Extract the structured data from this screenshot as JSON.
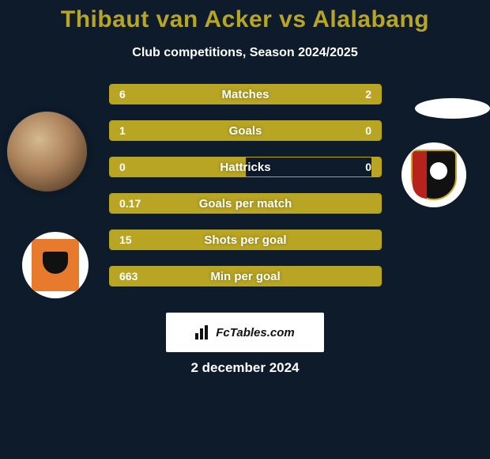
{
  "title": "Thibaut van Acker vs Alalabang",
  "subtitle": "Club competitions, Season 2024/2025",
  "brand": "FcTables.com",
  "date": "2 december 2024",
  "colors": {
    "background": "#0d1b2a",
    "accent": "#b8a524",
    "title": "#b8a524",
    "text": "#ffffff"
  },
  "rows": [
    {
      "label": "Matches",
      "left": "6",
      "right": "2",
      "left_pct": 75,
      "right_pct": 25
    },
    {
      "label": "Goals",
      "left": "1",
      "right": "0",
      "left_pct": 100,
      "right_pct": 0
    },
    {
      "label": "Hattricks",
      "left": "0",
      "right": "0",
      "left_pct": 50,
      "right_pct": 0
    },
    {
      "label": "Goals per match",
      "left": "0.17",
      "right": "",
      "left_pct": 100,
      "right_pct": 0
    },
    {
      "label": "Shots per goal",
      "left": "15",
      "right": "",
      "left_pct": 100,
      "right_pct": 0
    },
    {
      "label": "Min per goal",
      "left": "663",
      "right": "",
      "left_pct": 100,
      "right_pct": 0
    }
  ]
}
